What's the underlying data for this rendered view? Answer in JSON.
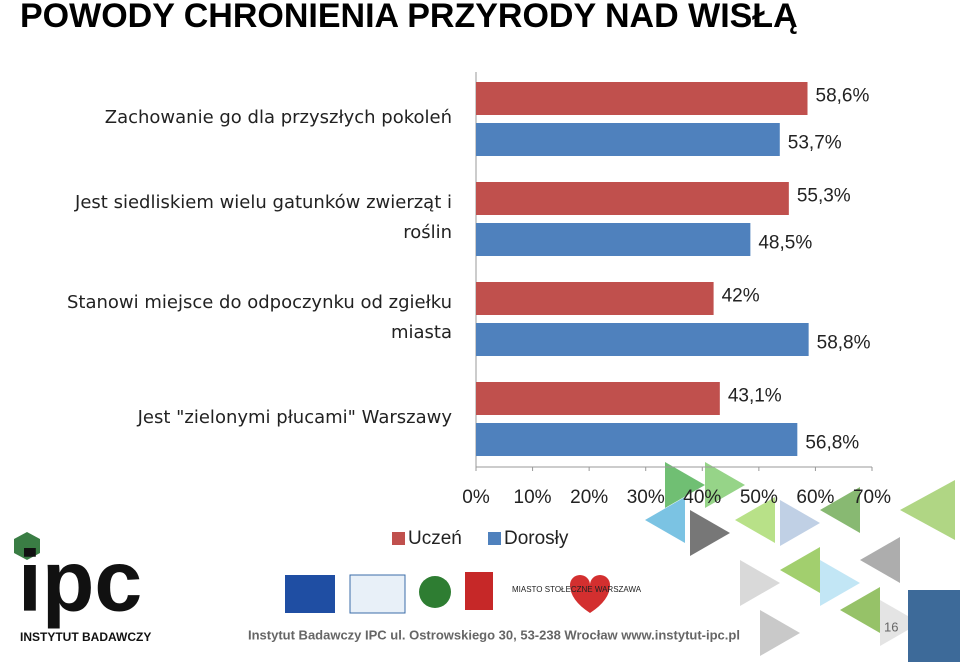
{
  "chart_data": {
    "type": "hbar",
    "title": "POWODY CHRONIENIA PRZYRODY NAD WISŁĄ",
    "categories": [
      "Zachowanie go dla przyszłych pokoleń",
      "Jest siedliskiem wielu gatunków zwierząt i roślin",
      "Stanowi miejsce do odpoczynku od zgiełku miasta",
      "Jest \"zielonymi płucami\" Warszawy"
    ],
    "series": [
      {
        "name": "Uczeń",
        "color": "#c0504d",
        "values": [
          58.6,
          55.3,
          42,
          43.1
        ],
        "value_labels": [
          "58,6%",
          "55,3%",
          "42%",
          "43,1%"
        ]
      },
      {
        "name": "Dorosły",
        "color": "#4f81bd",
        "values": [
          53.7,
          48.5,
          58.8,
          56.8
        ],
        "value_labels": [
          "53,7%",
          "48,5%",
          "58,8%",
          "56,8%"
        ]
      }
    ],
    "xlim": [
      0,
      70
    ],
    "xticks": [
      {
        "value": 0,
        "label": "0%"
      },
      {
        "value": 10,
        "label": "10%"
      },
      {
        "value": 20,
        "label": "20%"
      },
      {
        "value": 30,
        "label": "30%"
      },
      {
        "value": 40,
        "label": "40%"
      },
      {
        "value": 50,
        "label": "50%"
      },
      {
        "value": 60,
        "label": "60%"
      },
      {
        "value": 70,
        "label": "70%"
      }
    ],
    "legend": "bottom"
  },
  "footer": {
    "logo": "ipc",
    "logo_subtitle": "INSTYTUT BADAWCZY",
    "city_logo": "MIASTO STOŁECZNE WARSZAWA",
    "address": "Instytut Badawczy IPC ul. Ostrowskiego 30, 53-238 Wrocław www.instytut-ipc.pl",
    "page_number": "16"
  }
}
